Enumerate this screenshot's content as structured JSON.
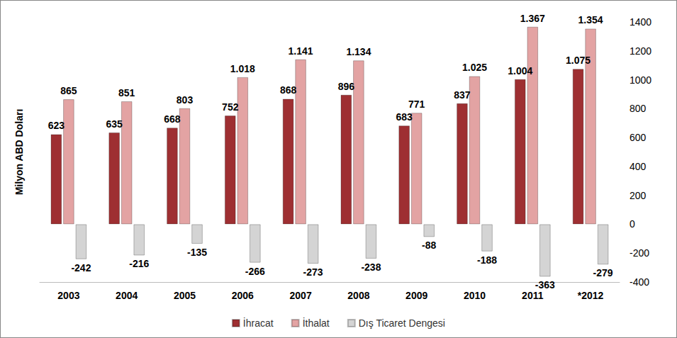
{
  "chart_data": {
    "type": "bar",
    "ylabel": "Milyon ABD Doları",
    "categories": [
      "2003",
      "2004",
      "2005",
      "2006",
      "2007",
      "2008",
      "2009",
      "2010",
      "2011",
      "*2012"
    ],
    "series": [
      {
        "name": "İhracat",
        "color": "#9e2f32",
        "values": [
          623,
          635,
          668,
          752,
          868,
          896,
          683,
          837,
          1004,
          1075
        ],
        "value_labels": [
          "623",
          "635",
          "668",
          "752",
          "868",
          "896",
          "683",
          "837",
          "1.004",
          "1.075"
        ]
      },
      {
        "name": "İthalat",
        "color": "#e3a3a3",
        "values": [
          865,
          851,
          803,
          1018,
          1141,
          1134,
          771,
          1025,
          1367,
          1354
        ],
        "value_labels": [
          "865",
          "851",
          "803",
          "1.018",
          "1.141",
          "1.134",
          "771",
          "1.025",
          "1.367",
          "1.354"
        ]
      },
      {
        "name": "Dış Ticaret Dengesi",
        "color": "#d4d4d4",
        "values": [
          -242,
          -216,
          -135,
          -266,
          -273,
          -238,
          -88,
          -188,
          -363,
          -279
        ]
      }
    ],
    "ylim": [
      -400,
      1400
    ],
    "yticks": [
      -400,
      -200,
      0,
      200,
      400,
      600,
      800,
      1000,
      1200,
      1400
    ],
    "grid": false,
    "legend": "bottom",
    "data_labels": true
  }
}
